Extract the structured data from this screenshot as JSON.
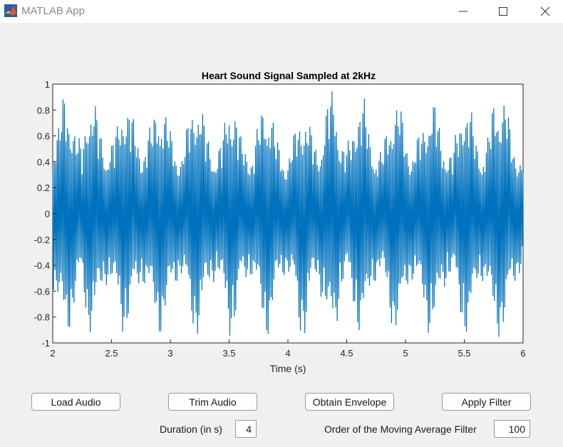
{
  "window": {
    "title": "MATLAB App",
    "icons": [
      "matlab-logo-icon",
      "minimize-icon",
      "maximize-icon",
      "close-icon"
    ]
  },
  "chart_data": {
    "type": "line",
    "title": "Heart Sound Signal Sampled at 2kHz",
    "xlabel": "Time (s)",
    "ylabel": "",
    "xlim": [
      2,
      6
    ],
    "ylim": [
      -1,
      1
    ],
    "xticks": [
      "2",
      "2.5",
      "3",
      "3.5",
      "4",
      "4.5",
      "5",
      "5.5",
      "6"
    ],
    "yticks": [
      "1",
      "0.8",
      "0.6",
      "0.4",
      "0.2",
      "0",
      "-0.2",
      "-0.4",
      "-0.6",
      "-0.8",
      "-1"
    ],
    "grid": false,
    "line_color": "#0072bd",
    "series": [
      {
        "x": [
          2.0,
          2.05,
          2.1,
          2.15,
          2.2,
          2.25,
          2.3,
          2.35,
          2.4,
          2.45,
          2.5,
          2.55,
          2.6,
          2.65,
          2.7,
          2.75,
          2.8,
          2.85,
          2.9,
          2.95,
          3.0,
          3.05,
          3.1,
          3.15,
          3.2,
          3.25,
          3.3,
          3.35,
          3.4,
          3.45,
          3.5,
          3.55,
          3.6,
          3.65,
          3.7,
          3.75,
          3.8,
          3.85,
          3.9,
          3.95,
          4.0,
          4.05,
          4.1,
          4.15,
          4.2,
          4.25,
          4.3,
          4.35,
          4.4,
          4.45,
          4.5,
          4.55,
          4.6,
          4.65,
          4.7,
          4.75,
          4.8,
          4.85,
          4.9,
          4.95,
          5.0,
          5.05,
          5.1,
          5.15,
          5.2,
          5.25,
          5.3,
          5.35,
          5.4,
          5.45,
          5.5,
          5.55,
          5.6,
          5.65,
          5.7,
          5.75,
          5.8,
          5.85,
          5.9,
          5.95,
          6.0
        ],
        "y_max": [
          0.62,
          0.72,
          0.97,
          0.88,
          0.66,
          0.52,
          0.97,
          0.92,
          0.68,
          0.55,
          0.58,
          0.7,
          0.97,
          0.9,
          0.68,
          0.55,
          0.62,
          0.74,
          0.97,
          0.85,
          0.66,
          0.55,
          0.48,
          0.72,
          0.97,
          0.92,
          0.68,
          0.56,
          0.5,
          0.65,
          0.96,
          0.88,
          0.6,
          0.55,
          0.5,
          0.72,
          0.96,
          0.9,
          0.6,
          0.5,
          0.46,
          0.62,
          0.8,
          0.85,
          0.65,
          0.52,
          0.72,
          0.96,
          1.0,
          0.62,
          0.52,
          0.7,
          0.96,
          0.9,
          0.62,
          0.52,
          0.5,
          0.72,
          0.97,
          0.88,
          0.62,
          0.52,
          0.6,
          0.7,
          0.96,
          0.9,
          0.62,
          0.55,
          0.5,
          0.72,
          0.98,
          0.85,
          0.6,
          0.52,
          0.62,
          0.9,
          1.0,
          0.95,
          0.6,
          0.52,
          0.46
        ],
        "y_min": [
          -0.6,
          -0.75,
          -0.97,
          -0.92,
          -0.65,
          -0.55,
          -0.96,
          -0.9,
          -0.68,
          -0.55,
          -0.58,
          -0.72,
          -0.96,
          -0.88,
          -0.66,
          -0.54,
          -0.6,
          -0.75,
          -0.97,
          -0.9,
          -0.65,
          -0.55,
          -0.5,
          -0.72,
          -0.96,
          -0.95,
          -0.65,
          -0.55,
          -0.5,
          -0.66,
          -0.97,
          -0.9,
          -0.6,
          -0.52,
          -0.5,
          -0.7,
          -0.97,
          -0.95,
          -0.62,
          -0.5,
          -0.48,
          -0.62,
          -0.98,
          -0.95,
          -0.62,
          -0.52,
          -0.72,
          -0.96,
          -0.98,
          -0.62,
          -0.52,
          -0.7,
          -0.96,
          -0.95,
          -0.62,
          -0.52,
          -0.5,
          -0.7,
          -0.97,
          -0.95,
          -0.62,
          -0.52,
          -0.6,
          -0.72,
          -0.96,
          -0.95,
          -0.62,
          -0.55,
          -0.5,
          -0.72,
          -0.98,
          -0.95,
          -0.6,
          -0.52,
          -0.62,
          -0.9,
          -0.98,
          -0.92,
          -0.6,
          -0.52,
          -0.42
        ]
      }
    ]
  },
  "controls": {
    "load_audio": "Load Audio",
    "trim_audio": "Trim Audio",
    "obtain_envelope": "Obtain Envelope",
    "apply_filter": "Apply Filter",
    "duration_label": "Duration (in s)",
    "duration_value": "4",
    "order_label": "Order of the Moving Average Filter",
    "order_value": "100"
  }
}
